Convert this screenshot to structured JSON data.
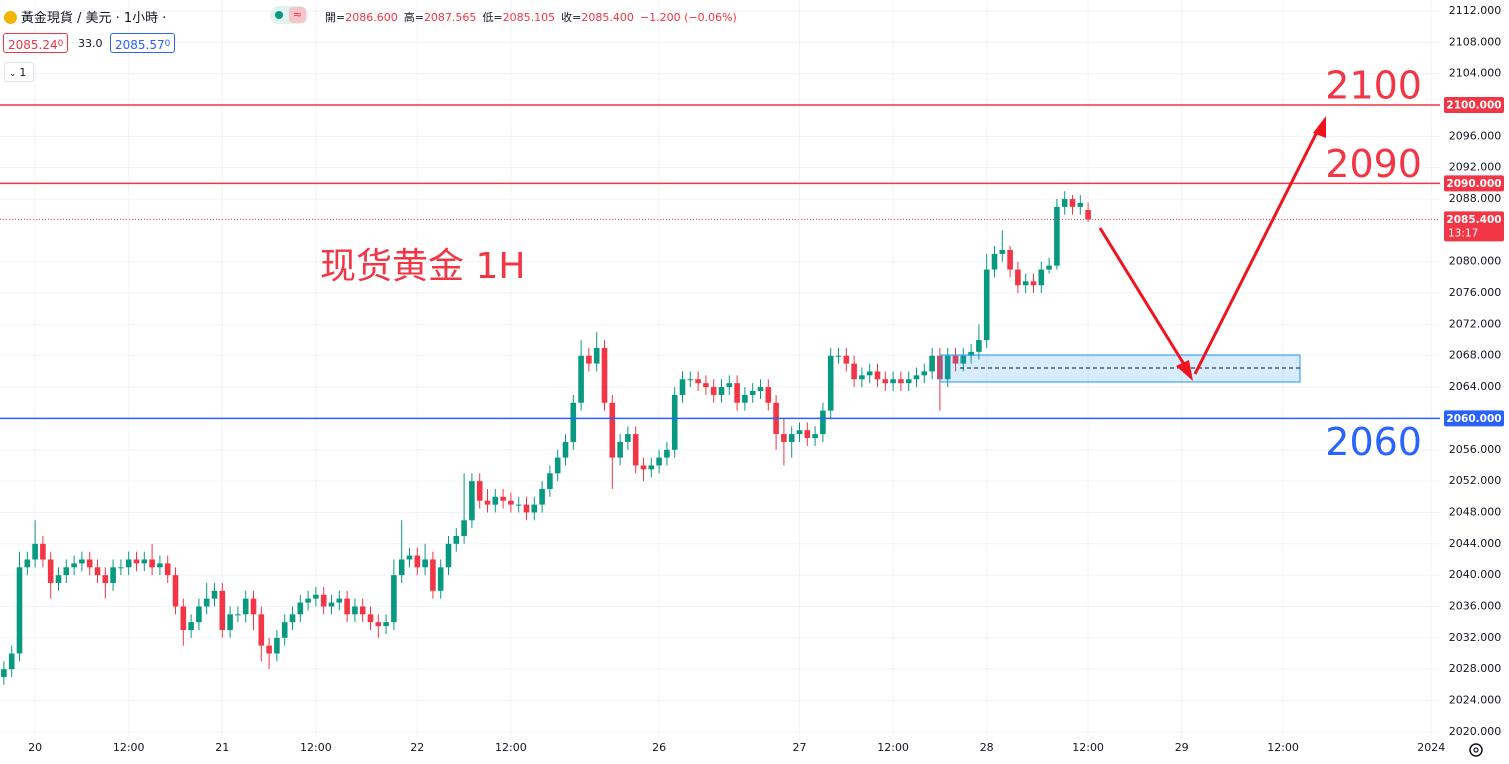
{
  "chart_data": {
    "type": "candlestick",
    "header": {
      "symbol": "黃金現貨 / 美元 · 1小時 ·",
      "quote": [
        {
          "label": "開=",
          "value": "2086.600"
        },
        {
          "label": "高=",
          "value": "2087.565"
        },
        {
          "label": "低=",
          "value": "2085.105"
        },
        {
          "label": "收=",
          "value": "2085.400"
        }
      ],
      "change": "−1.200 (−0.06%)",
      "bid": "2085.24",
      "bid_small": "0",
      "spread": "33.0",
      "ask": "2085.57",
      "ask_small": "0",
      "interval": "1"
    },
    "annotation": "现货黄金 1H",
    "up_color": "#089981",
    "down_color": "#f23645",
    "ylim": [
      2019.6,
      2113.4
    ],
    "yticks": [
      {
        "value": 2112,
        "label": "2112.000"
      },
      {
        "value": 2108,
        "label": "2108.000"
      },
      {
        "value": 2104,
        "label": "2104.000"
      },
      {
        "value": 2096,
        "label": "2096.000"
      },
      {
        "value": 2092,
        "label": "2092.000"
      },
      {
        "value": 2088,
        "label": "2088.000"
      },
      {
        "value": 2080,
        "label": "2080.000"
      },
      {
        "value": 2076,
        "label": "2076.000"
      },
      {
        "value": 2072,
        "label": "2072.000"
      },
      {
        "value": 2068,
        "label": "2068.000"
      },
      {
        "value": 2064,
        "label": "2064.000"
      },
      {
        "value": 2056,
        "label": "2056.000"
      },
      {
        "value": 2052,
        "label": "2052.000"
      },
      {
        "value": 2048,
        "label": "2048.000"
      },
      {
        "value": 2044,
        "label": "2044.000"
      },
      {
        "value": 2040,
        "label": "2040.000"
      },
      {
        "value": 2036,
        "label": "2036.000"
      },
      {
        "value": 2032,
        "label": "2032.000"
      },
      {
        "value": 2028,
        "label": "2028.000"
      },
      {
        "value": 2024,
        "label": "2024.000"
      },
      {
        "value": 2020,
        "label": "2020.000"
      }
    ],
    "grid": true,
    "levels": [
      {
        "value": 2100,
        "label": "2100.000",
        "color": "#f23645"
      },
      {
        "value": 2090,
        "label": "2090.000",
        "color": "#f23645"
      },
      {
        "value": 2060,
        "label": "2060.000",
        "color": "#2962ff"
      }
    ],
    "last": {
      "value": 2085.4,
      "label": "2085.400",
      "timer": "13:17",
      "color": "#f23645"
    },
    "categories": [
      null,
      null,
      null,
      null,
      "20",
      null,
      null,
      null,
      null,
      null,
      null,
      null,
      null,
      null,
      null,
      null,
      "12:00",
      null,
      null,
      null,
      null,
      null,
      null,
      null,
      null,
      null,
      null,
      null,
      "21",
      null,
      null,
      null,
      null,
      null,
      null,
      null,
      null,
      null,
      null,
      null,
      "12:00",
      null,
      null,
      null,
      null,
      null,
      null,
      null,
      null,
      null,
      null,
      null,
      null,
      "22",
      null,
      null,
      null,
      null,
      null,
      null,
      null,
      null,
      null,
      null,
      null,
      "12:00",
      null,
      null,
      null,
      null,
      null,
      null,
      null,
      null,
      null,
      null,
      null,
      null,
      null,
      null,
      null,
      null,
      null,
      null,
      "26",
      null,
      null,
      null,
      null,
      null,
      null,
      null,
      null,
      null,
      null,
      null,
      null,
      null,
      null,
      null,
      null,
      null,
      "27",
      null,
      null,
      null,
      null,
      null,
      null,
      null,
      null,
      null,
      null,
      null,
      "12:00",
      null,
      null,
      null,
      null,
      null,
      null,
      null,
      null,
      null,
      null,
      null,
      "28",
      null,
      null,
      null,
      null,
      null,
      null,
      null,
      null,
      null,
      null,
      null,
      null,
      "12:00",
      null,
      null,
      null,
      null,
      null,
      null,
      null,
      null,
      null,
      null,
      null,
      "29",
      null,
      null,
      null,
      null,
      null,
      null,
      null,
      null,
      null,
      null,
      null,
      null,
      "12:00",
      null,
      null,
      null,
      null,
      null,
      null,
      null,
      null,
      null,
      null,
      null,
      null,
      null,
      null,
      null,
      null,
      null,
      null,
      "2024"
    ],
    "open": [
      2027,
      2028,
      2030,
      2041,
      2042,
      2044,
      2042,
      2039,
      2040,
      2041,
      2041.5,
      2042,
      2041,
      2040,
      2039,
      2041,
      2041,
      2042,
      2041.5,
      2042,
      2041,
      2041.5,
      2040,
      2036,
      2033,
      2034,
      2036,
      2037,
      2038,
      2033,
      2035,
      2035,
      2037,
      2035,
      2031,
      2030,
      2032,
      2034,
      2035,
      2036.5,
      2037,
      2037.5,
      2036,
      2036.5,
      2037,
      2035,
      2036,
      2035,
      2034,
      2033.5,
      2034,
      2040,
      2042,
      2042.5,
      2041,
      2042,
      2038,
      2041,
      2044,
      2045,
      2047,
      2052,
      2049.5,
      2049,
      2050,
      2049.5,
      2049,
      2049,
      2048,
      2049,
      2051,
      2053,
      2055,
      2057,
      2062,
      2068,
      2067,
      2069,
      2062,
      2055,
      2057,
      2058,
      2054,
      2053.5,
      2054,
      2055,
      2056,
      2063,
      2065,
      2065,
      2064.5,
      2064,
      2063,
      2064,
      2064.5,
      2062,
      2063,
      2063.5,
      2064,
      2062,
      2058,
      2057,
      2058,
      2058.5,
      2057.5,
      2058,
      2061,
      2068,
      2068,
      2067,
      2065,
      2065.5,
      2066,
      2065,
      2064.5,
      2065,
      2064.5,
      2065,
      2065.5,
      2066,
      2068,
      2065,
      2068,
      2067,
      2068,
      2068.5,
      2070,
      2079,
      2081,
      2081.5,
      2079,
      2077,
      2077.5,
      2077,
      2079,
      2079.5,
      2087,
      2088,
      2087,
      2086.6,
      null,
      null,
      null,
      null,
      null,
      null,
      null,
      null,
      null,
      null,
      null,
      null,
      null,
      null,
      null,
      null,
      null,
      null,
      null,
      null,
      null,
      null,
      null,
      null,
      null,
      null,
      null,
      null,
      null,
      null,
      null,
      null,
      null,
      null,
      null,
      null,
      null,
      null,
      null,
      null,
      null,
      null,
      null,
      null
    ],
    "high": [
      2029,
      2031,
      2043,
      2043,
      2047,
      2045,
      2043,
      2041,
      2042,
      2042.5,
      2043,
      2043,
      2042,
      2041,
      2042,
      2042,
      2043,
      2043,
      2043,
      2044,
      2042.5,
      2042.5,
      2041,
      2037,
      2035,
      2037,
      2039,
      2039,
      2039,
      2036,
      2036,
      2038,
      2038,
      2036,
      2032,
      2033,
      2035,
      2036,
      2037.5,
      2038,
      2038.5,
      2038.5,
      2037.5,
      2038,
      2038,
      2037,
      2037,
      2036,
      2035,
      2035,
      2042,
      2047,
      2043.5,
      2043.5,
      2044,
      2043,
      2042,
      2045,
      2046,
      2053,
      2053,
      2053,
      2051,
      2051,
      2051,
      2050.5,
      2050,
      2050,
      2050,
      2052,
      2054,
      2056,
      2058,
      2063,
      2070,
      2069,
      2071,
      2070,
      2063,
      2058,
      2059,
      2059,
      2055,
      2055,
      2056,
      2057,
      2064,
      2066,
      2066,
      2066,
      2065.5,
      2065,
      2065,
      2065.5,
      2065.5,
      2064,
      2064.5,
      2065,
      2065,
      2063,
      2060,
      2059,
      2059.5,
      2059.5,
      2059,
      2062,
      2069,
      2069,
      2069,
      2068,
      2066.5,
      2067,
      2067,
      2066,
      2066,
      2066,
      2066,
      2066.5,
      2067,
      2069,
      2069,
      2069,
      2069,
      2069,
      2069.5,
      2072,
      2081,
      2082,
      2084,
      2082,
      2080,
      2078.5,
      2078.5,
      2080,
      2080.5,
      2088,
      2089,
      2088.5,
      2088.5,
      2087.565,
      null,
      null,
      null,
      null,
      null,
      null,
      null,
      null,
      null,
      null,
      null,
      null,
      null,
      null,
      null,
      null,
      null,
      null,
      null,
      null,
      null,
      null,
      null,
      null,
      null,
      null,
      null,
      null,
      null,
      null,
      null,
      null,
      null,
      null,
      null,
      null,
      null,
      null,
      null,
      null,
      null,
      null,
      null,
      null
    ],
    "low": [
      2026,
      2027,
      2029,
      2040,
      2041,
      2041,
      2037,
      2038,
      2039,
      2040,
      2040.5,
      2040,
      2039,
      2037,
      2038,
      2040,
      2040,
      2040.5,
      2040.5,
      2040,
      2040,
      2039,
      2035,
      2031,
      2032,
      2033,
      2035,
      2036,
      2032,
      2032,
      2034,
      2034,
      2033,
      2029,
      2028,
      2029,
      2031,
      2033,
      2034,
      2035.5,
      2036,
      2035,
      2035,
      2035.5,
      2034,
      2034,
      2034,
      2033,
      2032,
      2032.5,
      2033,
      2039,
      2041,
      2040,
      2040,
      2037,
      2037,
      2040,
      2043,
      2044,
      2046,
      2048.5,
      2048,
      2048,
      2048.5,
      2048,
      2048,
      2047,
      2047,
      2048,
      2050,
      2052,
      2054,
      2056,
      2061,
      2066,
      2066,
      2061,
      2051,
      2054,
      2056,
      2053,
      2052,
      2052.5,
      2053,
      2054,
      2055,
      2062,
      2064,
      2063.5,
      2063,
      2062,
      2062,
      2063,
      2061,
      2061,
      2062,
      2062.5,
      2061,
      2056,
      2054,
      2055,
      2057,
      2056.5,
      2056.5,
      2057,
      2060,
      2067,
      2066,
      2064,
      2064,
      2064.5,
      2064,
      2063.5,
      2063.5,
      2063.5,
      2063.5,
      2064,
      2064.5,
      2065,
      2061,
      2064,
      2066,
      2066,
      2067,
      2067.5,
      2069,
      2078,
      2080,
      2078,
      2076,
      2076,
      2076,
      2076,
      2078.5,
      2079,
      2086,
      2086,
      2086,
      2085.105,
      null,
      null,
      null,
      null,
      null,
      null,
      null,
      null,
      null,
      null,
      null,
      null,
      null,
      null,
      null,
      null,
      null,
      null,
      null,
      null,
      null,
      null,
      null,
      null,
      null,
      null,
      null,
      null,
      null,
      null,
      null,
      null,
      null,
      null,
      null,
      null,
      null,
      null,
      null,
      null,
      null,
      null,
      null,
      null
    ],
    "close": [
      2028,
      2030,
      2041,
      2042,
      2044,
      2042,
      2039,
      2040,
      2041,
      2041.5,
      2042,
      2041,
      2040,
      2039,
      2041,
      2041,
      2042,
      2041.5,
      2042,
      2041,
      2041.5,
      2040,
      2036,
      2033,
      2034,
      2036,
      2037,
      2038,
      2033,
      2035,
      2035,
      2037,
      2035,
      2031,
      2030,
      2032,
      2034,
      2035,
      2036.5,
      2037,
      2037.5,
      2036,
      2036.5,
      2037,
      2035,
      2036,
      2035,
      2034,
      2033.5,
      2034,
      2040,
      2042,
      2042.5,
      2041,
      2042,
      2038,
      2041,
      2044,
      2045,
      2047,
      2052,
      2049.5,
      2049,
      2050,
      2049.5,
      2049,
      2049,
      2048,
      2049,
      2051,
      2053,
      2055,
      2057,
      2062,
      2068,
      2067,
      2069,
      2062,
      2055,
      2057,
      2058,
      2054,
      2053.5,
      2054,
      2055,
      2056,
      2063,
      2065,
      2065,
      2064.5,
      2064,
      2063,
      2064,
      2064.5,
      2062,
      2063,
      2063.5,
      2064,
      2062,
      2058,
      2057,
      2058,
      2058.5,
      2057.5,
      2058,
      2061,
      2068,
      2068,
      2067,
      2065,
      2065.5,
      2066,
      2065,
      2064.5,
      2065,
      2064.5,
      2065,
      2065.5,
      2066,
      2068,
      2065,
      2068,
      2067,
      2068,
      2068.5,
      2070,
      2079,
      2081,
      2081.5,
      2079,
      2077,
      2077.5,
      2077,
      2079,
      2079.5,
      2087,
      2088,
      2087,
      2087.5,
      2085.4,
      null,
      null,
      null,
      null,
      null,
      null,
      null,
      null,
      null,
      null,
      null,
      null,
      null,
      null,
      null,
      null,
      null,
      null,
      null,
      null,
      null,
      null,
      null,
      null,
      null,
      null,
      null,
      null,
      null,
      null,
      null,
      null,
      null,
      null,
      null,
      null,
      null,
      null,
      null,
      null,
      null,
      null,
      null,
      null
    ]
  }
}
